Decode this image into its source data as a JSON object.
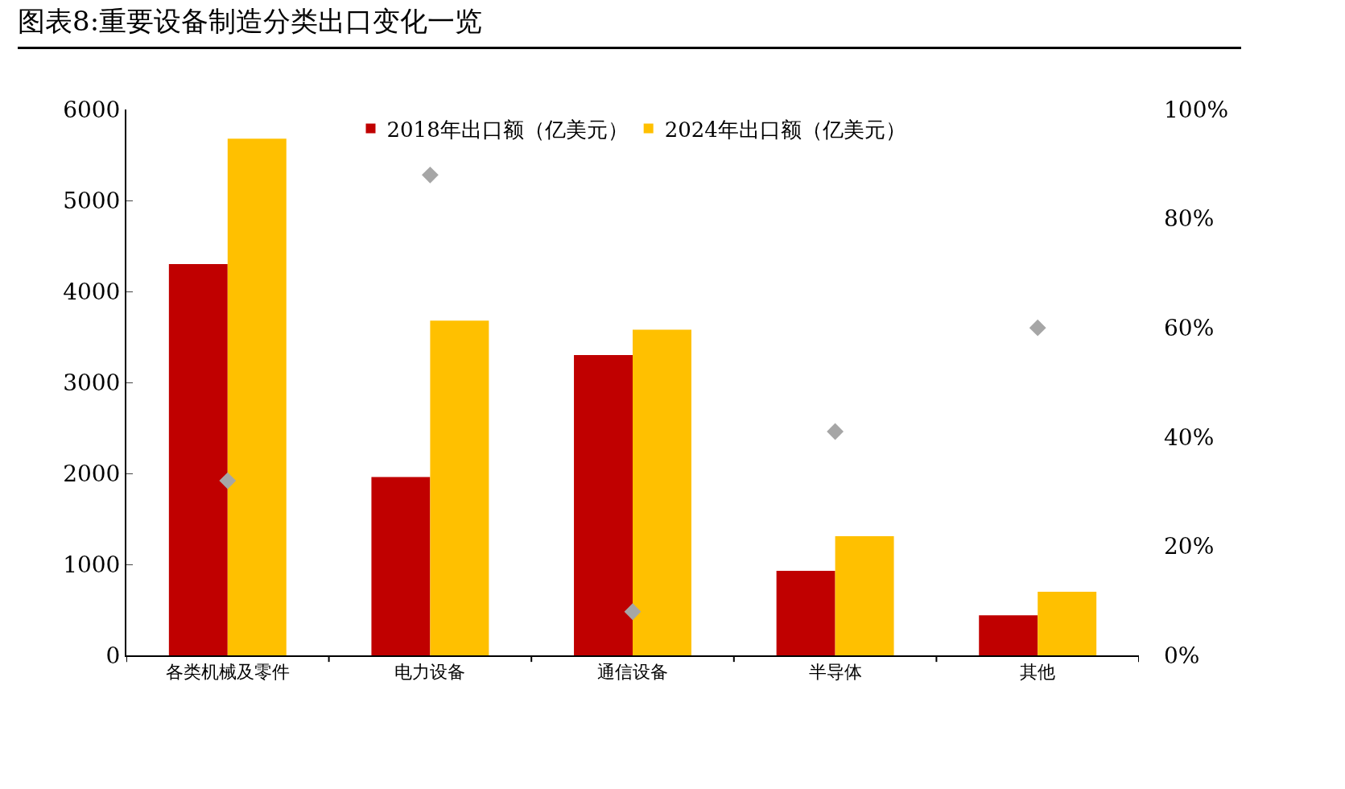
{
  "chart_data": {
    "type": "bar",
    "title": "图表8:重要设备制造分类出口变化一览",
    "categories": [
      "各类机械及零件",
      "电力设备",
      "通信设备",
      "半导体",
      "其他"
    ],
    "series": [
      {
        "name": "2018年出口额（亿美元）",
        "color": "#c00000",
        "values": [
          4300,
          1960,
          3300,
          930,
          440
        ]
      },
      {
        "name": "2024年出口额（亿美元）",
        "color": "#ffc000",
        "values": [
          5680,
          3680,
          3580,
          1310,
          700
        ]
      },
      {
        "type": "scatter",
        "axis": "y2",
        "color": "#a6a6a6",
        "marker": "diamond",
        "values": [
          32,
          88,
          8,
          41,
          60
        ]
      }
    ],
    "ylim": [
      0,
      6000
    ],
    "yticks": [
      0,
      1000,
      2000,
      3000,
      4000,
      5000,
      6000
    ],
    "y2lim": [
      0,
      100
    ],
    "y2ticks": [
      {
        "value": 0,
        "label": "0%"
      },
      {
        "value": 20,
        "label": "20%"
      },
      {
        "value": 40,
        "label": "40%"
      },
      {
        "value": 60,
        "label": "60%"
      },
      {
        "value": 80,
        "label": "80%"
      },
      {
        "value": 100,
        "label": "100%"
      }
    ],
    "grid": false,
    "legend": "top"
  }
}
